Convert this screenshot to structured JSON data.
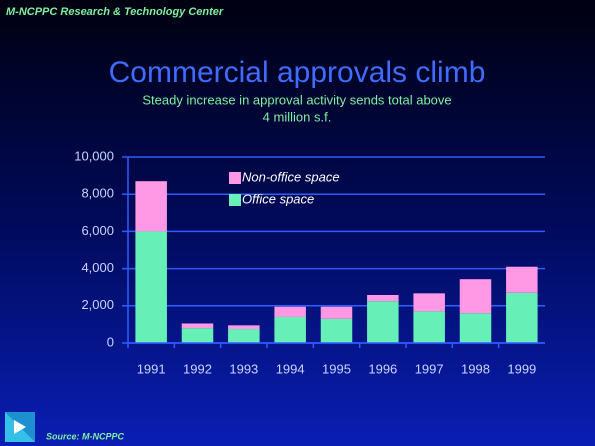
{
  "header": "M-NCPPC Research & Technology Center",
  "source": "Source: M-NCPPC",
  "chart_data": {
    "type": "stacked_bar",
    "title": "Commercial approvals climb",
    "subtitle": [
      "Steady increase in approval activity sends total above",
      "4 million s.f."
    ],
    "categories": [
      "1991",
      "1992",
      "1993",
      "1994",
      "1995",
      "1996",
      "1997",
      "1998",
      "1999"
    ],
    "series": [
      {
        "name": "Office space",
        "color": "#66f0b8",
        "values": [
          6000,
          800,
          750,
          1400,
          1300,
          2250,
          1700,
          1600,
          2700
        ]
      },
      {
        "name": "Non-office space",
        "color": "#ff99e6",
        "values": [
          2700,
          250,
          200,
          550,
          650,
          330,
          970,
          1830,
          1400
        ]
      }
    ],
    "ylim": [
      0,
      10000
    ],
    "yticks": [
      0,
      {
        "value": 2000,
        "label": "2,000"
      },
      {
        "value": 4000,
        "label": "4,000"
      },
      {
        "value": 6000,
        "label": "6,000"
      },
      {
        "value": 8000,
        "label": "8,000"
      },
      {
        "value": 10000,
        "label": "10,000"
      }
    ],
    "grid": true
  }
}
